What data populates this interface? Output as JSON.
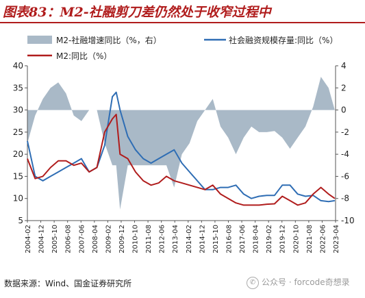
{
  "header": {
    "title": "图表83：M2-社融剪刀差仍然处于收窄过程中"
  },
  "footer": {
    "source": "数据来源：Wind、国金证券研究所",
    "watermark": "公众号 · forcode奇想录"
  },
  "colors": {
    "title": "#b01c1c",
    "area": "#a9b9c7",
    "social_financing": "#2e6db4",
    "m2": "#b01c1c"
  },
  "chart_data": {
    "type": "line",
    "legend": [
      {
        "name": "M2-社融增速同比（%，右）",
        "kind": "area"
      },
      {
        "name": "社会融资规模存量:同比（%）",
        "kind": "line"
      },
      {
        "name": "M2:同比（%）",
        "kind": "line"
      }
    ],
    "xlabels": [
      "2004-02",
      "2004-12",
      "2005-10",
      "2006-08",
      "2007-06",
      "2008-04",
      "2009-02",
      "2009-12",
      "2010-10",
      "2011-08",
      "2012-06",
      "2013-04",
      "2014-02",
      "2014-12",
      "2015-10",
      "2016-08",
      "2017-06",
      "2018-04",
      "2019-02",
      "2019-12",
      "2020-10",
      "2021-08",
      "2022-06",
      "2023-04"
    ],
    "y_left": {
      "min": 5,
      "max": 40,
      "ticks": [
        5,
        10,
        15,
        20,
        25,
        30,
        35,
        40
      ]
    },
    "y_right": {
      "min": -10,
      "max": 4,
      "ticks": [
        -10,
        -8,
        -6,
        -4,
        -2,
        0,
        2,
        4
      ]
    },
    "x": [
      2004.0,
      2004.5,
      2005.0,
      2005.5,
      2006.0,
      2006.5,
      2007.0,
      2007.5,
      2008.0,
      2008.5,
      2009.0,
      2009.5,
      2009.75,
      2010.0,
      2010.5,
      2011.0,
      2011.5,
      2012.0,
      2012.5,
      2013.0,
      2013.5,
      2014.0,
      2014.5,
      2015.0,
      2015.5,
      2016.0,
      2016.5,
      2017.0,
      2017.5,
      2018.0,
      2018.5,
      2019.0,
      2019.5,
      2020.0,
      2020.5,
      2021.0,
      2021.5,
      2022.0,
      2022.5,
      2023.0,
      2023.5,
      2023.9
    ],
    "series": [
      {
        "name": "社会融资规模存量:同比（%）",
        "axis": "left",
        "values": [
          23,
          15,
          14,
          15,
          16,
          17,
          18,
          19,
          16,
          17,
          22,
          33,
          34,
          30,
          24,
          21,
          19,
          18,
          19,
          20,
          21,
          18,
          16,
          14,
          12,
          12,
          12.5,
          12.5,
          13,
          11,
          10,
          10.5,
          10.7,
          10.7,
          13,
          13,
          11,
          10.5,
          10.7,
          9.5,
          9.3,
          9.5
        ]
      },
      {
        "name": "M2:同比（%）",
        "axis": "left",
        "values": [
          19,
          14.5,
          15,
          17,
          18.5,
          18.5,
          17.5,
          18,
          16,
          17,
          25,
          28,
          29,
          20,
          19,
          16,
          14,
          13,
          13.5,
          15,
          14,
          13.5,
          13,
          12.5,
          12,
          13,
          11,
          10,
          9,
          8.5,
          8.5,
          8.5,
          8.7,
          8.8,
          10.5,
          9.5,
          8.5,
          9,
          11,
          12.5,
          11,
          10
        ]
      },
      {
        "name": "M2-社融增速同比（%，右）",
        "axis": "right",
        "values": [
          -3,
          -0.5,
          1,
          2,
          2.5,
          1.5,
          -0.5,
          -1,
          0,
          0,
          -3,
          -5,
          -5,
          -9,
          -5,
          -5,
          -5,
          -5,
          -5,
          -5,
          -7,
          -4,
          -3,
          -1,
          0,
          1,
          -1.5,
          -2.5,
          -4,
          -2.5,
          -1.5,
          -2,
          -2,
          -1.9,
          -2.5,
          -3.5,
          -2.5,
          -1.5,
          0.3,
          3,
          2.0,
          0
        ]
      }
    ]
  }
}
